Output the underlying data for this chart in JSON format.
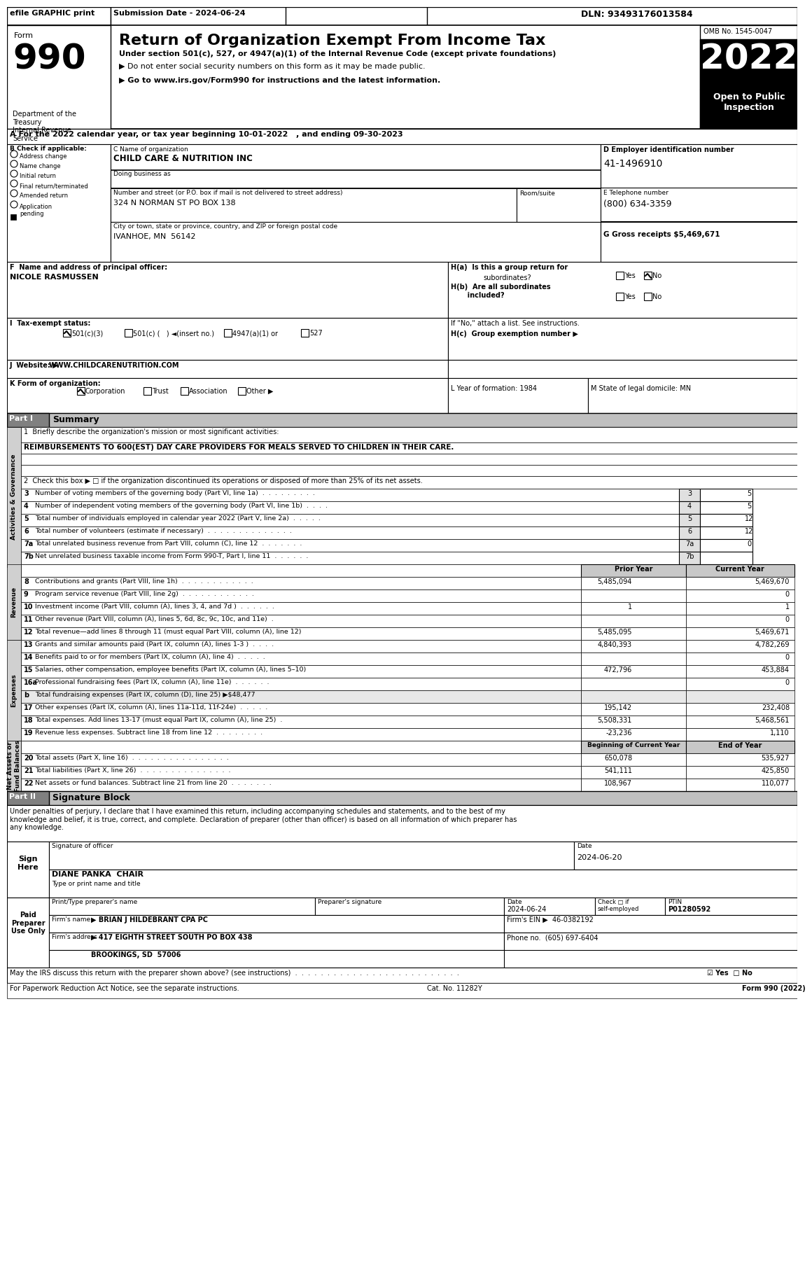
{
  "title": "Return of Organization Exempt From Income Tax",
  "subtitle1": "Under section 501(c), 527, or 4947(a)(1) of the Internal Revenue Code (except private foundations)",
  "subtitle2": "▶ Do not enter social security numbers on this form as it may be made public.",
  "subtitle3": "▶ Go to www.irs.gov/Form990 for instructions and the latest information.",
  "form_number": "990",
  "year": "2022",
  "omb": "OMB No. 1545-0047",
  "open_to_public": "Open to Public\nInspection",
  "efile_text": "efile GRAPHIC print",
  "submission_date": "Submission Date - 2024-06-24",
  "dln": "DLN: 93493176013584",
  "dept_treasury": "Department of the\nTreasury\nInternal Revenue\nService",
  "section_a": "A For the 2022 calendar year, or tax year beginning 10-01-2022   , and ending 09-30-2023",
  "b_label": "B Check if applicable:",
  "checkboxes_b": [
    "Address change",
    "Name change",
    "Initial return",
    "Final return/terminated",
    "Amended return",
    "Application\npending"
  ],
  "c_label": "C Name of organization",
  "org_name": "CHILD CARE & NUTRITION INC",
  "dba_label": "Doing business as",
  "address_label": "Number and street (or P.O. box if mail is not delivered to street address)",
  "room_label": "Room/suite",
  "address_value": "324 N NORMAN ST PO BOX 138",
  "city_label": "City or town, state or province, country, and ZIP or foreign postal code",
  "city_value": "IVANHOE, MN  56142",
  "d_label": "D Employer identification number",
  "ein": "41-1496910",
  "e_label": "E Telephone number",
  "phone": "(800) 634-3359",
  "g_label": "G Gross receipts $",
  "gross_receipts": "5,469,671",
  "f_label": "F  Name and address of principal officer:",
  "principal": "NICOLE RASMUSSEN",
  "ha_label": "H(a)  Is this a group return for",
  "ha_q": "subordinates?",
  "ha_ans": "Yes ☑No",
  "hb_label": "H(b)  Are all subordinates\n       included?",
  "hb_ans": "Yes □No",
  "hb_note": "If \"No,\" attach a list. See instructions.",
  "hc_label": "H(c)  Group exemption number ▶",
  "i_label": "I  Tax-exempt status:",
  "i_501c3": "☑ 501(c)(3)",
  "i_501c": "□ 501(c) (    ) ◄(insert no.)",
  "i_4947": "□ 4947(a)(1) or",
  "i_527": "□ 527",
  "j_label": "J  Website: ▶",
  "website": "WWW.CHILDCARENUTRITION.COM",
  "k_label": "K Form of organization:",
  "k_corp": "☑ Corporation",
  "k_trust": "□ Trust",
  "k_assoc": "□ Association",
  "k_other": "□ Other ▶",
  "l_label": "L Year of formation: 1984",
  "m_label": "M State of legal domicile: MN",
  "part1_label": "Part I",
  "part1_title": "Summary",
  "line1_label": "1  Briefly describe the organization's mission or most significant activities:",
  "line1_value": "REIMBURSEMENTS TO 600(EST) DAY CARE PROVIDERS FOR MEALS SERVED TO CHILDREN IN THEIR CARE.",
  "line2_label": "2  Check this box ▶ □ if the organization discontinued its operations or disposed of more than 25% of its net assets.",
  "lines": [
    {
      "num": "3",
      "label": "Number of voting members of the governing body (Part VI, line 1a)  .  .  .  .  .  .  .  .  .",
      "col_a": "",
      "col_b": "5"
    },
    {
      "num": "4",
      "label": "Number of independent voting members of the governing body (Part VI, line 1b)  .  .  .  .",
      "col_a": "",
      "col_b": "5"
    },
    {
      "num": "5",
      "label": "Total number of individuals employed in calendar year 2022 (Part V, line 2a)  .  .  .  .  .",
      "col_a": "",
      "col_b": "12"
    },
    {
      "num": "6",
      "label": "Total number of volunteers (estimate if necessary)  .  .  .  .  .  .  .  .  .  .  .  .  .  .",
      "col_a": "",
      "col_b": "12"
    },
    {
      "num": "7a",
      "label": "Total unrelated business revenue from Part VIII, column (C), line 12  .  .  .  .  .  .  .",
      "col_a": "",
      "col_b": "0"
    },
    {
      "num": "7b",
      "label": "Net unrelated business taxable income from Form 990-T, Part I, line 11  .  .  .  .  .  .",
      "col_a": "",
      "col_b": ""
    }
  ],
  "revenue_header": [
    "",
    "",
    "Prior Year",
    "Current Year"
  ],
  "revenue_lines": [
    {
      "num": "8",
      "label": "Contributions and grants (Part VIII, line 1h)  .  .  .  .  .  .  .  .  .  .  .  .",
      "prior": "5,485,094",
      "current": "5,469,670"
    },
    {
      "num": "9",
      "label": "Program service revenue (Part VIII, line 2g)  .  .  .  .  .  .  .  .  .  .  .  .",
      "prior": "",
      "current": "0"
    },
    {
      "num": "10",
      "label": "Investment income (Part VIII, column (A), lines 3, 4, and 7d )  .  .  .  .  .  .",
      "prior": "1",
      "current": "1"
    },
    {
      "num": "11",
      "label": "Other revenue (Part VIII, column (A), lines 5, 6d, 8c, 9c, 10c, and 11e)  .",
      "prior": "",
      "current": "0"
    },
    {
      "num": "12",
      "label": "Total revenue—add lines 8 through 11 (must equal Part VIII, column (A), line 12)",
      "prior": "5,485,095",
      "current": "5,469,671"
    }
  ],
  "expenses_lines": [
    {
      "num": "13",
      "label": "Grants and similar amounts paid (Part IX, column (A), lines 1-3 )  .  .  .  .",
      "prior": "4,840,393",
      "current": "4,782,269"
    },
    {
      "num": "14",
      "label": "Benefits paid to or for members (Part IX, column (A), line 4)  .  .  .  .  .",
      "prior": "",
      "current": "0"
    },
    {
      "num": "15",
      "label": "Salaries, other compensation, employee benefits (Part IX, column (A), lines 5–10)",
      "prior": "472,796",
      "current": "453,884"
    },
    {
      "num": "16a",
      "label": "Professional fundraising fees (Part IX, column (A), line 11e)  .  .  .  .  .  .",
      "prior": "",
      "current": "0"
    },
    {
      "num": "b",
      "label": "Total fundraising expenses (Part IX, column (D), line 25) ▶$48,477",
      "prior": "",
      "current": ""
    },
    {
      "num": "17",
      "label": "Other expenses (Part IX, column (A), lines 11a-11d, 11f-24e)  .  .  .  .  .",
      "prior": "195,142",
      "current": "232,408"
    },
    {
      "num": "18",
      "label": "Total expenses. Add lines 13-17 (must equal Part IX, column (A), line 25)  .",
      "prior": "5,508,331",
      "current": "5,468,561"
    },
    {
      "num": "19",
      "label": "Revenue less expenses. Subtract line 18 from line 12  .  .  .  .  .  .  .  .",
      "prior": "-23,236",
      "current": "1,110"
    }
  ],
  "net_assets_header": [
    "",
    "",
    "Beginning of Current Year",
    "End of Year"
  ],
  "net_assets_lines": [
    {
      "num": "20",
      "label": "Total assets (Part X, line 16)  .  .  .  .  .  .  .  .  .  .  .  .  .  .  .  .",
      "prior": "650,078",
      "current": "535,927"
    },
    {
      "num": "21",
      "label": "Total liabilities (Part X, line 26)  .  .  .  .  .  .  .  .  .  .  .  .  .  .  .",
      "prior": "541,111",
      "current": "425,850"
    },
    {
      "num": "22",
      "label": "Net assets or fund balances. Subtract line 21 from line 20  .  .  .  .  .  .  .",
      "prior": "108,967",
      "current": "110,077"
    }
  ],
  "part2_label": "Part II",
  "part2_title": "Signature Block",
  "sig_text": "Under penalties of perjury, I declare that I have examined this return, including accompanying schedules and statements, and to the best of my\nknowledge and belief, it is true, correct, and complete. Declaration of preparer (other than officer) is based on all information of which preparer has\nany knowledge.",
  "sig_officer_label": "Signature of officer",
  "sig_date_label": "Date",
  "sig_date_value": "2024-06-20",
  "sig_name": "DIANE PANKA  CHAIR",
  "sig_title_label": "Type or print name and title",
  "preparer_name_label": "Print/Type preparer's name",
  "preparer_sig_label": "Preparer's signature",
  "preparer_date_label": "Date",
  "preparer_check_label": "Check □ if\nself-employed",
  "ptin_label": "PTIN",
  "preparer_name": "",
  "preparer_sig": "",
  "preparer_date": "2024-06-24",
  "ptin": "P01280592",
  "firm_name_label": "Firm's name",
  "firm_name": "▶ BRIAN J HILDEBRANT CPA PC",
  "firm_ein_label": "Firm's EIN ▶",
  "firm_ein": "46-0382192",
  "firm_addr_label": "Firm's address",
  "firm_addr": "▶ 417 EIGHTH STREET SOUTH PO BOX 438",
  "firm_phone_label": "Phone no.",
  "firm_phone": "(605) 697-6404",
  "city_state_zip": "BROOKINGS, SD  57006",
  "discuss_label": "May the IRS discuss this return with the preparer shown above? (see instructions)  .  .  .  .  .  .  .  .  .  .  .  .  .  .  .  .  .  .  .  .  .  .  .  .  .  .",
  "discuss_ans": "☑ Yes  □ No",
  "cat_no": "Cat. No. 11282Y",
  "form_footer": "Form 990 (2022)",
  "paperwork_label": "For Paperwork Reduction Act Notice, see the separate instructions.",
  "side_label_governance": "Activities & Governance",
  "side_label_revenue": "Revenue",
  "side_label_expenses": "Expenses",
  "side_label_net": "Net Assets or\nFund Balances",
  "paid_preparer": "Paid\nPreparer\nUse Only",
  "sign_here": "Sign\nHere"
}
